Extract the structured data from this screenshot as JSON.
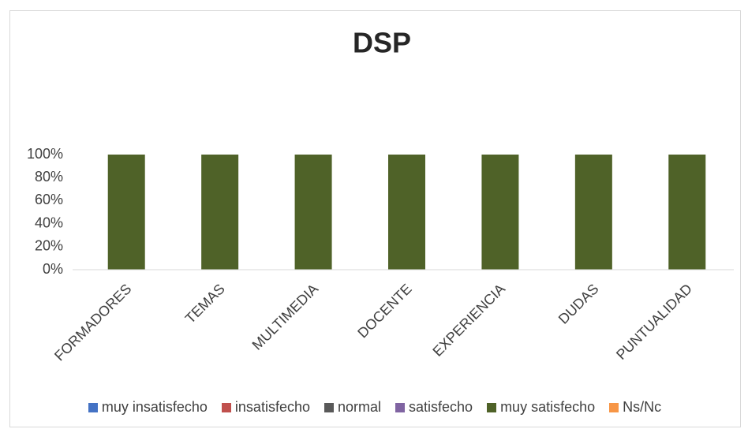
{
  "chart_data": {
    "type": "stacked_bar",
    "title": "DSP",
    "categories": [
      "FORMADORES",
      "TEMAS",
      "MULTIMEDIA",
      "DOCENTE",
      "EXPERIENCIA",
      "DUDAS",
      "PUNTUALIDAD"
    ],
    "series": [
      {
        "name": "muy insatisfecho",
        "color": "#4472c4",
        "values": [
          0,
          0,
          0,
          0,
          0,
          0,
          0
        ]
      },
      {
        "name": "insatisfecho",
        "color": "#c0504d",
        "values": [
          0,
          0,
          0,
          0,
          0,
          0,
          0
        ]
      },
      {
        "name": "normal",
        "color": "#595959",
        "values": [
          0,
          0,
          0,
          0,
          0,
          0,
          0
        ]
      },
      {
        "name": "satisfecho",
        "color": "#8064a2",
        "values": [
          0,
          0,
          0,
          0,
          0,
          0,
          0
        ]
      },
      {
        "name": "muy satisfecho",
        "color": "#4f6228",
        "values": [
          100,
          100,
          100,
          100,
          100,
          100,
          100
        ]
      },
      {
        "name": "Ns/Nc",
        "color": "#f79646",
        "values": [
          0,
          0,
          0,
          0,
          0,
          0,
          0
        ]
      }
    ],
    "ylim": [
      0,
      100
    ],
    "yticks": [
      {
        "value": 0,
        "label": "0%"
      },
      {
        "value": 20,
        "label": "20%"
      },
      {
        "value": 40,
        "label": "40%"
      },
      {
        "value": 60,
        "label": "60%"
      },
      {
        "value": 80,
        "label": "80%"
      },
      {
        "value": 100,
        "label": "100%"
      }
    ],
    "grid": false,
    "legend": "bottom"
  }
}
